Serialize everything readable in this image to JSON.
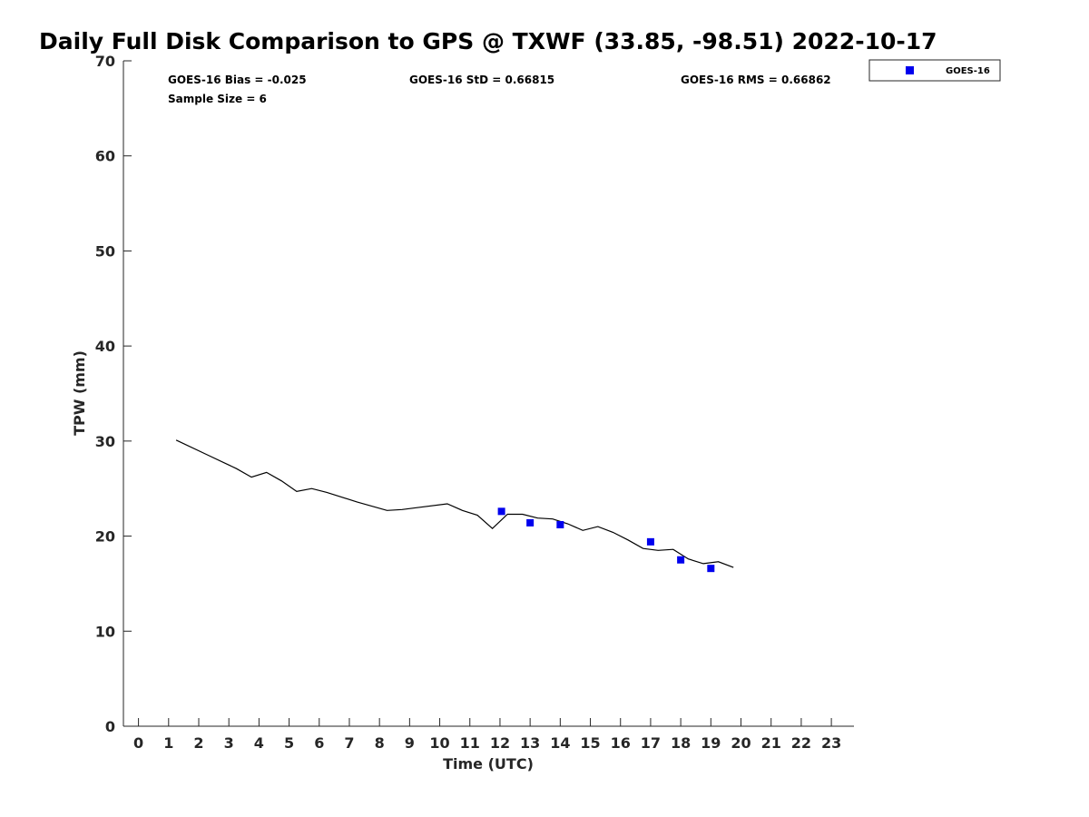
{
  "colors": {
    "marker": "#0000ee",
    "line": "#000000",
    "axis": "#262626"
  },
  "chart_data": {
    "type": "line",
    "title": "Daily Full Disk Comparison to GPS @ TXWF (33.85, -98.51) 2022-10-17",
    "xlabel": "Time (UTC)",
    "ylabel": "TPW (mm)",
    "xlim": [
      -0.5,
      23.75
    ],
    "ylim": [
      0,
      70
    ],
    "x_ticks": [
      "0",
      "1",
      "2",
      "3",
      "4",
      "5",
      "6",
      "7",
      "8",
      "9",
      "10",
      "11",
      "12",
      "13",
      "14",
      "15",
      "16",
      "17",
      "18",
      "19",
      "20",
      "21",
      "22",
      "23"
    ],
    "y_ticks": [
      "0",
      "10",
      "20",
      "30",
      "40",
      "50",
      "60",
      "70"
    ],
    "grid": false,
    "legend_position": "outside-top-right",
    "stats": {
      "bias": "GOES-16 Bias = -0.025",
      "std": "GOES-16 StD = 0.66815",
      "rms": "GOES-16 RMS = 0.66862",
      "sample_size": "Sample Size = 6"
    },
    "series": [
      {
        "kind": "line",
        "x": [
          1.25,
          2.25,
          3.25,
          3.75,
          4.25,
          4.75,
          5.25,
          5.75,
          6.25,
          7.25,
          8.25,
          8.75,
          9.25,
          10.25,
          10.75,
          11.25,
          11.75,
          12.25,
          12.75,
          13.25,
          13.75,
          14.25,
          14.75,
          15.25,
          15.75,
          16.25,
          16.75,
          17.25,
          17.75,
          18.25,
          18.75,
          19.25,
          19.75
        ],
        "y": [
          30.1,
          28.6,
          27.1,
          26.2,
          26.7,
          25.8,
          24.7,
          25.0,
          24.6,
          23.6,
          22.7,
          22.8,
          23.0,
          23.4,
          22.7,
          22.2,
          20.8,
          22.3,
          22.3,
          21.9,
          21.8,
          21.3,
          20.6,
          21.0,
          20.4,
          19.6,
          18.7,
          18.5,
          18.6,
          17.6,
          17.1,
          17.3,
          16.7
        ]
      },
      {
        "kind": "scatter",
        "name": "GOES-16",
        "x": [
          12.05,
          13.0,
          14.0,
          17.0,
          18.0,
          19.0
        ],
        "y": [
          22.6,
          21.4,
          21.2,
          19.4,
          17.5,
          16.6
        ]
      }
    ]
  }
}
